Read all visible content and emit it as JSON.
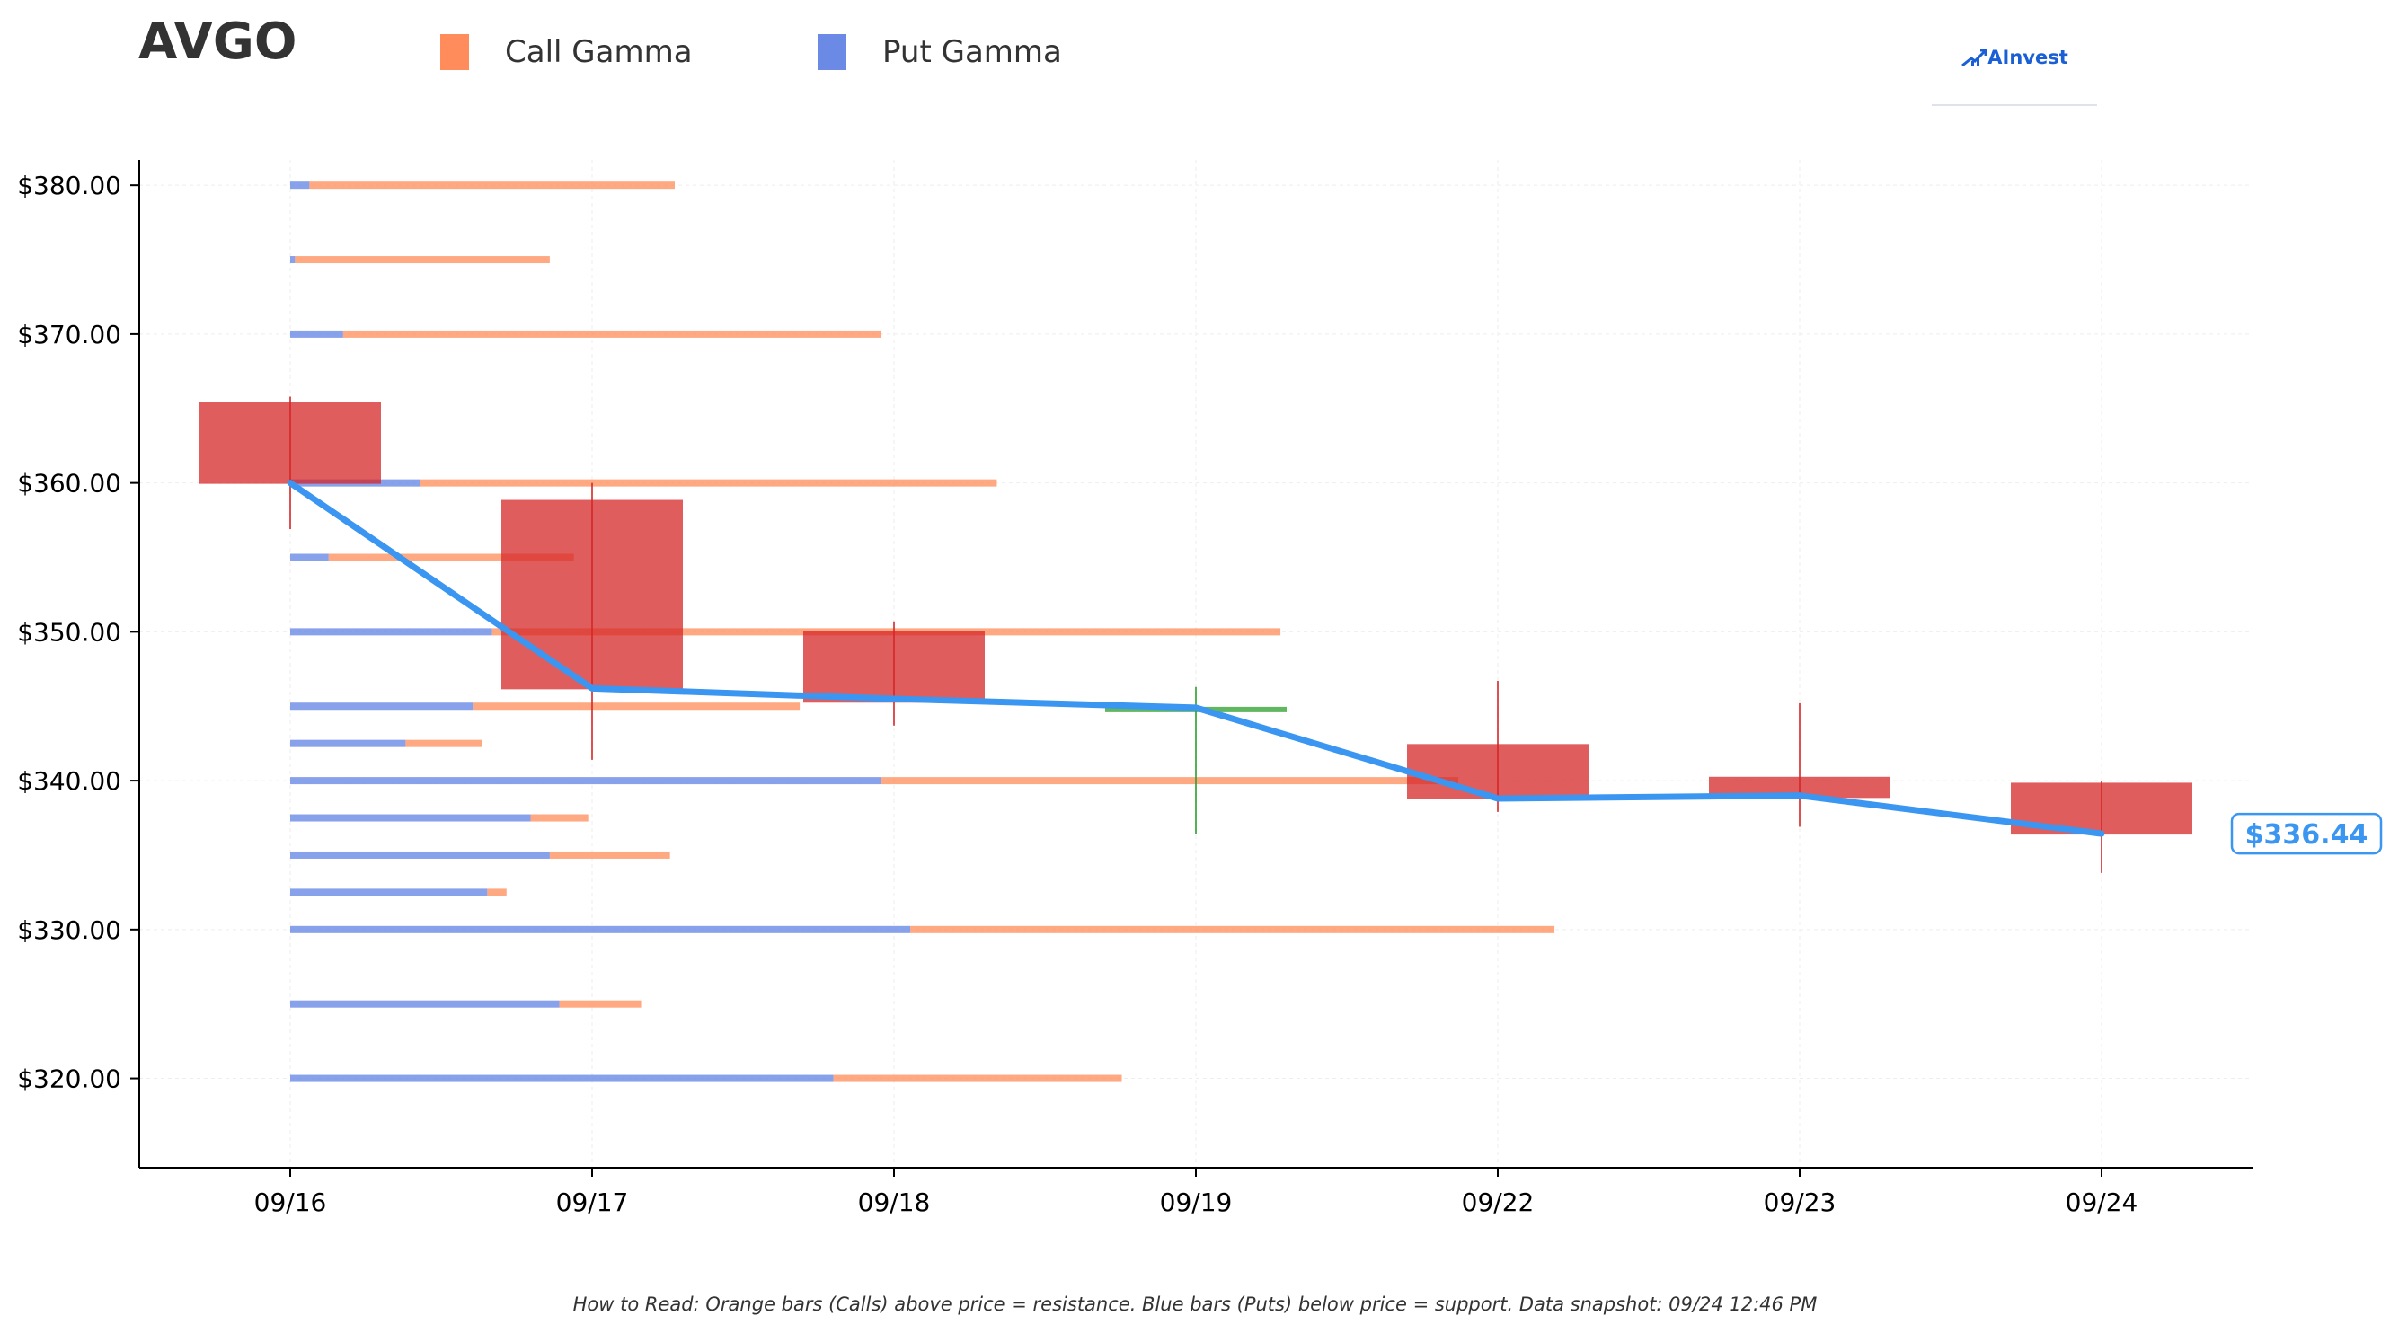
{
  "header": {
    "ticker": "AVGO",
    "legend": [
      {
        "label": "Call Gamma",
        "color": "#ff8c5a"
      },
      {
        "label": "Put Gamma",
        "color": "#6a8ae6"
      }
    ],
    "brand": {
      "name": "AInvest",
      "icon": "ainvest-logo-icon",
      "color": "#1a5fd6"
    }
  },
  "footer": {
    "note": "How to Read: Orange bars (Calls) above price = resistance. Blue bars (Puts) below price = support. Data snapshot: 09/24 12:46 PM"
  },
  "chart_data": {
    "type": "candlestick",
    "title": "AVGO",
    "xlabel": "",
    "ylabel": "",
    "categories": [
      "09/16",
      "09/17",
      "09/18",
      "09/19",
      "09/22",
      "09/23",
      "09/24"
    ],
    "ylim": [
      314,
      381.7
    ],
    "yticks": [
      320,
      330,
      340,
      350,
      360,
      370,
      380
    ],
    "ytick_labels": [
      "$320.00",
      "$330.00",
      "$340.00",
      "$350.00",
      "$360.00",
      "$370.00",
      "$380.00"
    ],
    "grid": true,
    "legend_position": "top-left",
    "colors": {
      "up": "#2ca02c",
      "down": "#d62728",
      "price_line": "#3a96f0",
      "call": "#ff8c5a",
      "put": "#6a8ae6"
    },
    "candles": [
      {
        "date": "09/16",
        "open": 365.4,
        "high": 365.8,
        "low": 356.9,
        "close": 360.0
      },
      {
        "date": "09/17",
        "open": 358.8,
        "high": 360.0,
        "low": 341.4,
        "close": 346.2
      },
      {
        "date": "09/18",
        "open": 350.0,
        "high": 350.7,
        "low": 343.7,
        "close": 345.3
      },
      {
        "date": "09/19",
        "open": 344.8,
        "high": 346.3,
        "low": 336.4,
        "close": 344.9
      },
      {
        "date": "09/22",
        "open": 342.4,
        "high": 346.7,
        "low": 337.9,
        "close": 338.8
      },
      {
        "date": "09/23",
        "open": 340.2,
        "high": 345.2,
        "low": 336.9,
        "close": 338.9
      },
      {
        "date": "09/24",
        "open": 339.8,
        "high": 340.0,
        "low": 333.8,
        "close": 336.44
      }
    ],
    "series": [
      {
        "type": "line",
        "values": [
          360.0,
          346.2,
          345.5,
          344.9,
          338.8,
          339.0,
          336.44
        ]
      }
    ],
    "last_price": {
      "label": "$336.44",
      "value": 336.44
    },
    "gamma_bars": [
      {
        "strike": 380,
        "put": 0.2,
        "call": 3.8
      },
      {
        "strike": 375,
        "put": 0.05,
        "call": 2.65
      },
      {
        "strike": 370,
        "put": 0.55,
        "call": 5.6
      },
      {
        "strike": 360,
        "put": 1.35,
        "call": 6.0
      },
      {
        "strike": 355,
        "put": 0.4,
        "call": 2.55
      },
      {
        "strike": 350,
        "put": 2.1,
        "call": 8.2
      },
      {
        "strike": 345,
        "put": 1.9,
        "call": 3.4
      },
      {
        "strike": 342.5,
        "put": 1.2,
        "call": 0.8
      },
      {
        "strike": 340,
        "put": 6.15,
        "call": 6.0
      },
      {
        "strike": 337.5,
        "put": 2.5,
        "call": 0.6
      },
      {
        "strike": 335,
        "put": 2.7,
        "call": 1.25
      },
      {
        "strike": 332.5,
        "put": 2.05,
        "call": 0.2
      },
      {
        "strike": 330,
        "put": 6.45,
        "call": 6.7
      },
      {
        "strike": 325,
        "put": 2.8,
        "call": 0.85
      },
      {
        "strike": 320,
        "put": 5.65,
        "call": 3.0
      }
    ]
  }
}
